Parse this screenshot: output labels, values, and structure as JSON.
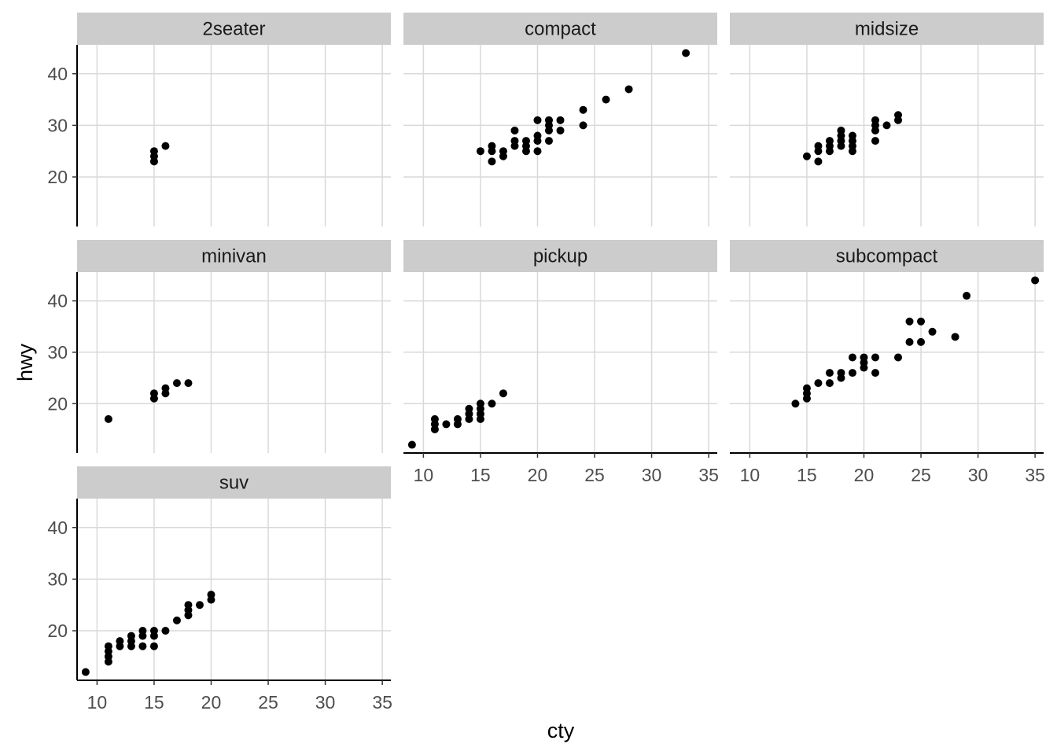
{
  "chart_data": {
    "type": "scatter",
    "layout": "facet_wrap",
    "ncol": 3,
    "xlabel": "cty",
    "ylabel": "hwy",
    "xlim": [
      8.25,
      35.75
    ],
    "ylim": [
      10.4,
      45.6
    ],
    "x_ticks": [
      10,
      15,
      20,
      25,
      30,
      35
    ],
    "y_ticks": [
      20,
      30,
      40
    ],
    "grid": true,
    "point_color": "#000000",
    "panel_background": "#ffffff",
    "strip_fill": "#cccccc",
    "grid_color": "#d9d9d9",
    "panels": [
      {
        "label": "2seater",
        "points": [
          [
            15,
            23
          ],
          [
            15,
            24
          ],
          [
            15,
            25
          ],
          [
            16,
            26
          ]
        ]
      },
      {
        "label": "compact",
        "points": [
          [
            15,
            25
          ],
          [
            16,
            23
          ],
          [
            16,
            25
          ],
          [
            16,
            26
          ],
          [
            17,
            24
          ],
          [
            17,
            25
          ],
          [
            18,
            26
          ],
          [
            18,
            27
          ],
          [
            18,
            29
          ],
          [
            19,
            25
          ],
          [
            19,
            26
          ],
          [
            19,
            27
          ],
          [
            20,
            25
          ],
          [
            20,
            27
          ],
          [
            20,
            28
          ],
          [
            20,
            31
          ],
          [
            21,
            27
          ],
          [
            21,
            29
          ],
          [
            21,
            30
          ],
          [
            21,
            31
          ],
          [
            22,
            29
          ],
          [
            22,
            31
          ],
          [
            24,
            30
          ],
          [
            24,
            33
          ],
          [
            26,
            35
          ],
          [
            28,
            37
          ],
          [
            33,
            44
          ]
        ]
      },
      {
        "label": "midsize",
        "points": [
          [
            15,
            24
          ],
          [
            16,
            23
          ],
          [
            16,
            25
          ],
          [
            16,
            26
          ],
          [
            17,
            25
          ],
          [
            17,
            26
          ],
          [
            17,
            27
          ],
          [
            18,
            26
          ],
          [
            18,
            27
          ],
          [
            18,
            28
          ],
          [
            18,
            29
          ],
          [
            19,
            25
          ],
          [
            19,
            26
          ],
          [
            19,
            27
          ],
          [
            19,
            28
          ],
          [
            21,
            27
          ],
          [
            21,
            29
          ],
          [
            21,
            30
          ],
          [
            21,
            31
          ],
          [
            22,
            30
          ],
          [
            23,
            31
          ],
          [
            23,
            32
          ]
        ]
      },
      {
        "label": "minivan",
        "points": [
          [
            11,
            17
          ],
          [
            15,
            21
          ],
          [
            15,
            22
          ],
          [
            16,
            22
          ],
          [
            16,
            23
          ],
          [
            17,
            24
          ],
          [
            18,
            24
          ]
        ]
      },
      {
        "label": "pickup",
        "points": [
          [
            9,
            12
          ],
          [
            11,
            15
          ],
          [
            11,
            16
          ],
          [
            11,
            17
          ],
          [
            12,
            16
          ],
          [
            13,
            16
          ],
          [
            13,
            17
          ],
          [
            14,
            17
          ],
          [
            14,
            18
          ],
          [
            14,
            19
          ],
          [
            15,
            17
          ],
          [
            15,
            18
          ],
          [
            15,
            19
          ],
          [
            15,
            20
          ],
          [
            16,
            20
          ],
          [
            17,
            22
          ]
        ]
      },
      {
        "label": "subcompact",
        "points": [
          [
            14,
            20
          ],
          [
            15,
            21
          ],
          [
            15,
            22
          ],
          [
            15,
            23
          ],
          [
            16,
            24
          ],
          [
            17,
            24
          ],
          [
            17,
            26
          ],
          [
            18,
            25
          ],
          [
            18,
            26
          ],
          [
            19,
            26
          ],
          [
            19,
            29
          ],
          [
            20,
            27
          ],
          [
            20,
            28
          ],
          [
            20,
            29
          ],
          [
            21,
            26
          ],
          [
            21,
            29
          ],
          [
            23,
            29
          ],
          [
            24,
            32
          ],
          [
            24,
            36
          ],
          [
            25,
            32
          ],
          [
            25,
            36
          ],
          [
            26,
            34
          ],
          [
            28,
            33
          ],
          [
            29,
            41
          ],
          [
            35,
            44
          ]
        ]
      },
      {
        "label": "suv",
        "points": [
          [
            9,
            12
          ],
          [
            11,
            14
          ],
          [
            11,
            15
          ],
          [
            11,
            16
          ],
          [
            11,
            17
          ],
          [
            12,
            17
          ],
          [
            12,
            18
          ],
          [
            13,
            17
          ],
          [
            13,
            18
          ],
          [
            13,
            19
          ],
          [
            14,
            17
          ],
          [
            14,
            19
          ],
          [
            14,
            20
          ],
          [
            15,
            17
          ],
          [
            15,
            19
          ],
          [
            15,
            20
          ],
          [
            16,
            20
          ],
          [
            17,
            22
          ],
          [
            18,
            23
          ],
          [
            18,
            24
          ],
          [
            18,
            25
          ],
          [
            19,
            25
          ],
          [
            20,
            26
          ],
          [
            20,
            27
          ]
        ]
      }
    ]
  }
}
